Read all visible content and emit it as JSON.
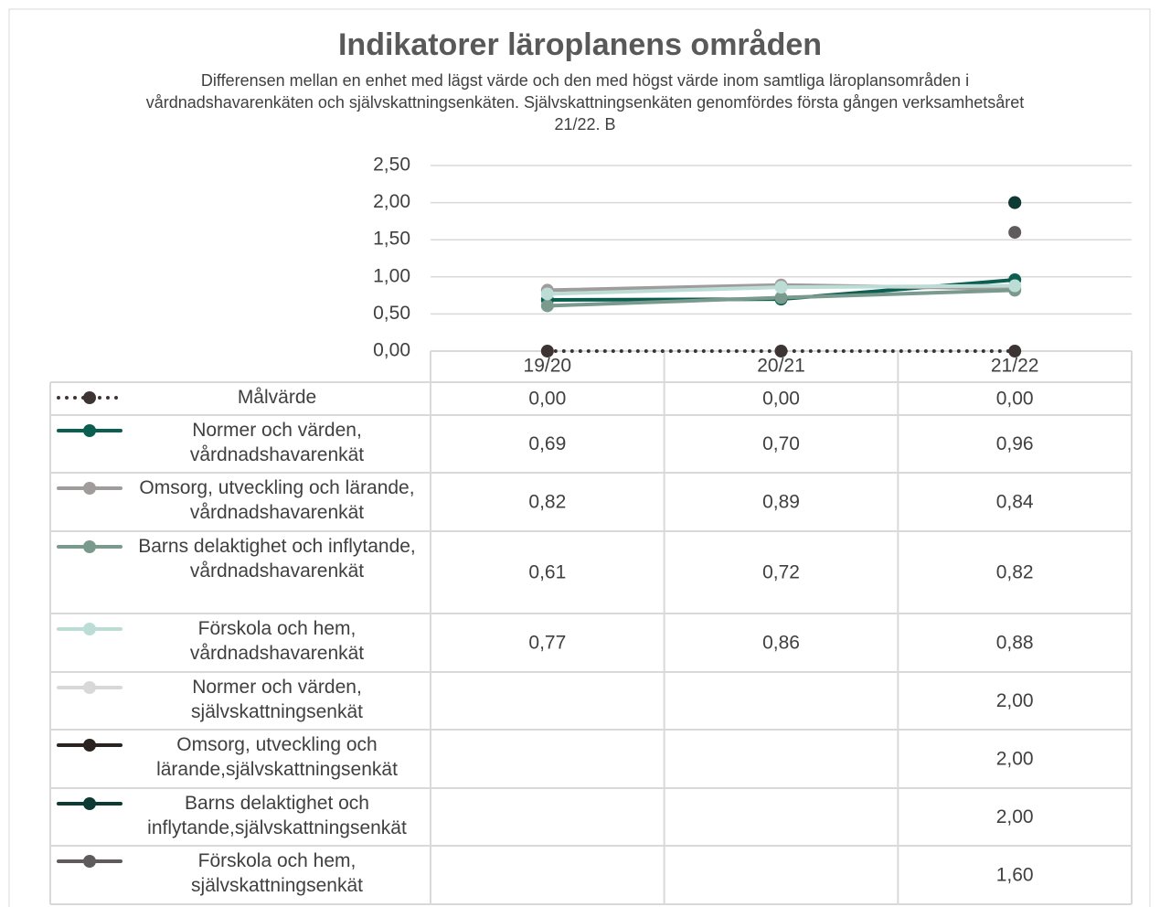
{
  "chart_data": {
    "type": "line",
    "title": "Indikatorer läroplanens områden",
    "subtitle": "Differensen mellan en enhet med lägst värde och den med högst värde inom samtliga läroplansområden i vårdnadshavarenkäten och självskattningsenkäten. Självskattningsenkäten genomfördes första gången verksamhetsåret 21/22. B",
    "categories": [
      "19/20",
      "20/21",
      "21/22"
    ],
    "ylim": [
      0,
      2.5
    ],
    "yticks": [
      {
        "value": 0,
        "label": "0,00"
      },
      {
        "value": 0.5,
        "label": "0,50"
      },
      {
        "value": 1,
        "label": "1,00"
      },
      {
        "value": 1.5,
        "label": "1,50"
      },
      {
        "value": 2,
        "label": "2,00"
      },
      {
        "value": 2.5,
        "label": "2,50"
      }
    ],
    "grid": true,
    "series": [
      {
        "name": "Målvärde",
        "color": "#3d3533",
        "dash": "dotted",
        "values": [
          0,
          0,
          0
        ],
        "value_labels": [
          "0,00",
          "0,00",
          "0,00"
        ]
      },
      {
        "name": "Normer och värden, vårdnadshavarenkät",
        "color": "#0b5e50",
        "values": [
          0.69,
          0.7,
          0.96
        ],
        "value_labels": [
          "0,69",
          "0,70",
          "0,96"
        ]
      },
      {
        "name": "Omsorg, utveckling och lärande, vårdnadshavarenkät",
        "color": "#a09c9c",
        "values": [
          0.82,
          0.89,
          0.84
        ],
        "value_labels": [
          "0,82",
          "0,89",
          "0,84"
        ]
      },
      {
        "name": "Barns delaktighet och inflytande, vårdnadshavarenkät",
        "color": "#7a9a8e",
        "values": [
          0.61,
          0.72,
          0.82
        ],
        "value_labels": [
          "0,61",
          "0,72",
          "0,82"
        ]
      },
      {
        "name": "Förskola och hem, vårdnadshavarenkät",
        "color": "#bcdcd6",
        "values": [
          0.77,
          0.86,
          0.88
        ],
        "value_labels": [
          "0,77",
          "0,86",
          "0,88"
        ]
      },
      {
        "name": "Normer och värden, självskattningsenkät",
        "color": "#d8d8d8",
        "values": [
          null,
          null,
          2.0
        ],
        "value_labels": [
          null,
          null,
          "2,00"
        ]
      },
      {
        "name": "Omsorg, utveckling och lärande,självskattningsenkät",
        "color": "#2a2320",
        "values": [
          null,
          null,
          2.0
        ],
        "value_labels": [
          null,
          null,
          "2,00"
        ]
      },
      {
        "name": "Barns delaktighet och inflytande,självskattningsenkät",
        "color": "#0d3b33",
        "values": [
          null,
          null,
          2.0
        ],
        "value_labels": [
          null,
          null,
          "2,00"
        ]
      },
      {
        "name": "Förskola och hem, självskattningsenkät",
        "color": "#5f5b5c",
        "values": [
          null,
          null,
          1.6
        ],
        "value_labels": [
          null,
          null,
          "1,60"
        ]
      }
    ]
  }
}
